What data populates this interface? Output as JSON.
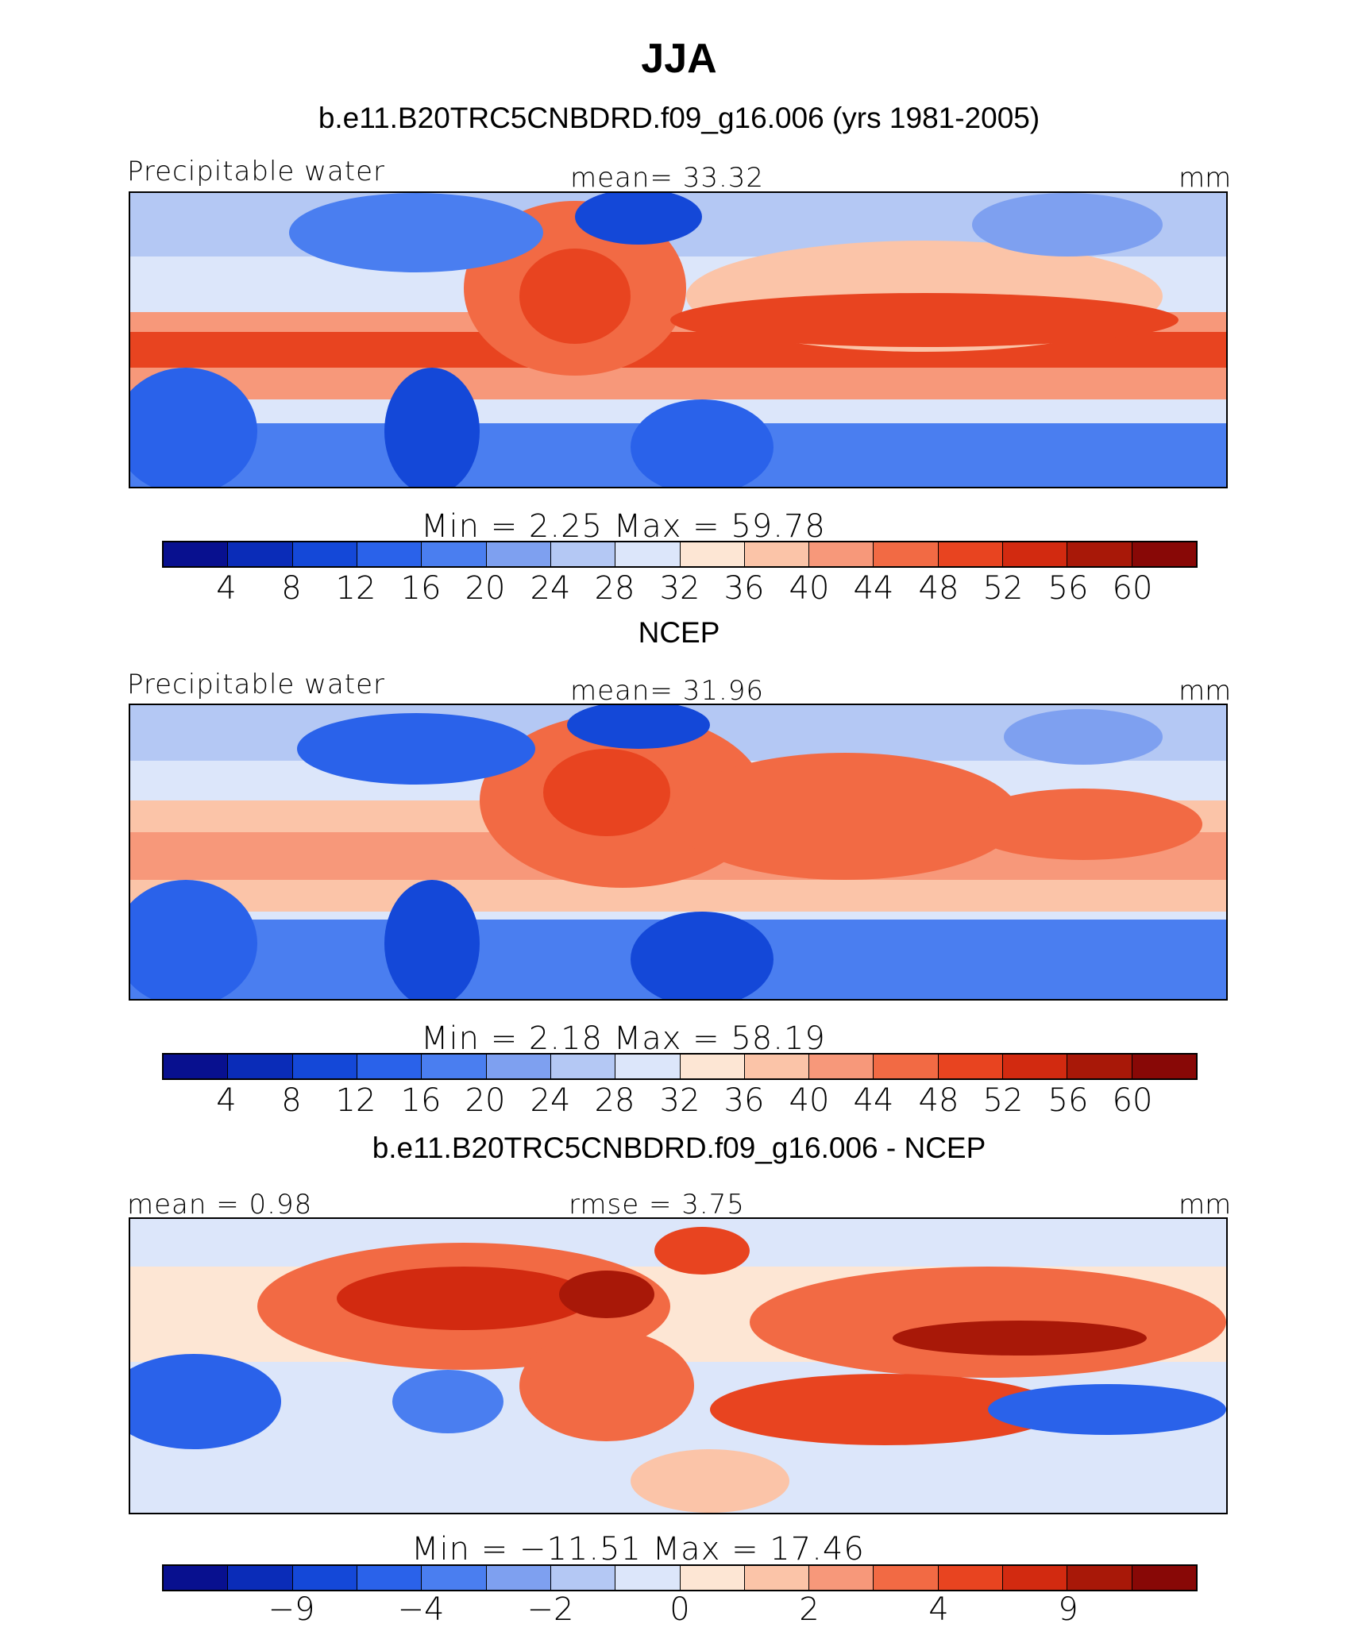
{
  "figure": {
    "title": "JJA",
    "units": "mm"
  },
  "panels": [
    {
      "title": "b.e11.B20TRC5CNBDRD.f09_g16.006 (yrs 1981-2005)",
      "left_label": "Precipitable water",
      "center_label": "mean=   33.32",
      "right_label": "mm",
      "stats": "Min =      2.25  Max =     59.78",
      "colorbar_ticks": [
        "4",
        "8",
        "12",
        "16",
        "20",
        "24",
        "28",
        "32",
        "36",
        "40",
        "44",
        "48",
        "52",
        "56",
        "60"
      ]
    },
    {
      "title": "NCEP",
      "left_label": "Precipitable water",
      "center_label": "mean=   31.96",
      "right_label": "mm",
      "stats": "Min =      2.18  Max =     58.19",
      "colorbar_ticks": [
        "4",
        "8",
        "12",
        "16",
        "20",
        "24",
        "28",
        "32",
        "36",
        "40",
        "44",
        "48",
        "52",
        "56",
        "60"
      ]
    },
    {
      "title": "b.e11.B20TRC5CNBDRD.f09_g16.006 - NCEP",
      "left_label": "mean =    0.98",
      "center_label": "rmse =     3.75",
      "right_label": "mm",
      "stats": "Min = −11.51  Max =    17.46",
      "colorbar_ticks": [
        "−9",
        "−4",
        "−2",
        "0",
        "2",
        "4",
        "9"
      ]
    }
  ],
  "colors": {
    "palette": [
      "#08108f",
      "#0a2cb8",
      "#1448d8",
      "#2a62ea",
      "#4a7ef0",
      "#7ea0f0",
      "#b4c8f4",
      "#dce6fa",
      "#fde6d4",
      "#fbc4a8",
      "#f7987a",
      "#f26a44",
      "#e84420",
      "#d22a10",
      "#a81808",
      "#880806"
    ]
  },
  "chart_data": [
    {
      "type": "heatmap",
      "title": "b.e11.B20TRC5CNBDRD.f09_g16.006 (yrs 1981-2005)",
      "variable": "Precipitable water",
      "units": "mm",
      "mean": 33.32,
      "min": 2.25,
      "max": 59.78,
      "contour_levels": [
        4,
        8,
        12,
        16,
        20,
        24,
        28,
        32,
        36,
        40,
        44,
        48,
        52,
        56,
        60
      ]
    },
    {
      "type": "heatmap",
      "title": "NCEP",
      "variable": "Precipitable water",
      "units": "mm",
      "mean": 31.96,
      "min": 2.18,
      "max": 58.19,
      "contour_levels": [
        4,
        8,
        12,
        16,
        20,
        24,
        28,
        32,
        36,
        40,
        44,
        48,
        52,
        56,
        60
      ]
    },
    {
      "type": "heatmap",
      "title": "b.e11.B20TRC5CNBDRD.f09_g16.006 - NCEP",
      "units": "mm",
      "mean": 0.98,
      "rmse": 3.75,
      "min": -11.51,
      "max": 17.46,
      "contour_levels": [
        -9,
        -4,
        -2,
        0,
        2,
        4,
        9
      ]
    }
  ]
}
